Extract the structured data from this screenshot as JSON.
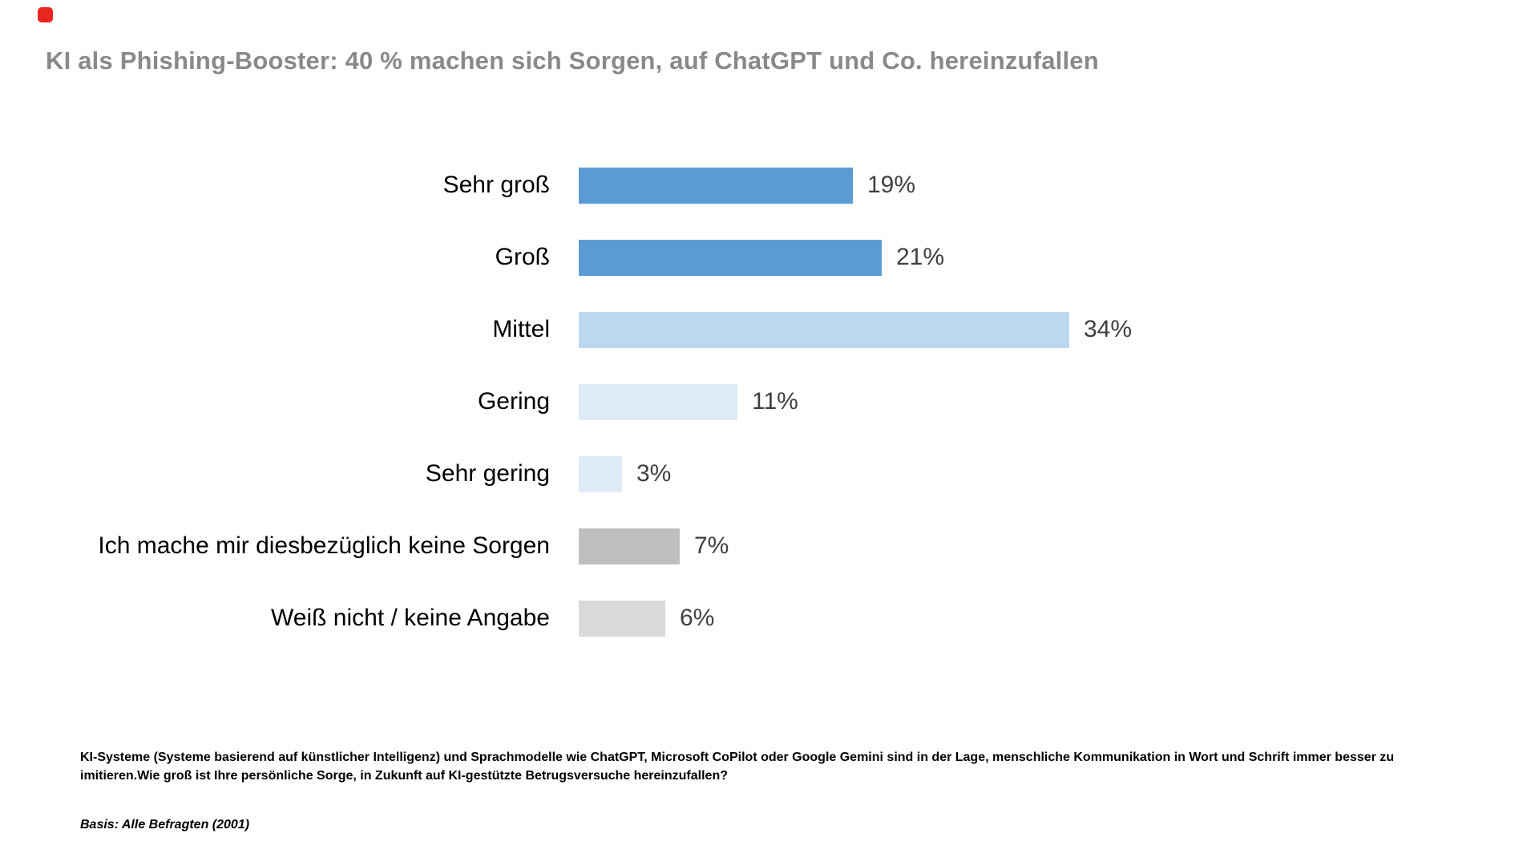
{
  "title": "KI als Phishing-Booster: 40 % machen sich Sorgen, auf ChatGPT und Co. hereinzufallen",
  "chart_data": {
    "type": "bar",
    "orientation": "horizontal",
    "unit": "%",
    "title": "KI als Phishing-Booster: 40 % machen sich Sorgen, auf ChatGPT und Co. hereinzufallen",
    "categories": [
      "Sehr groß",
      "Groß",
      "Mittel",
      "Gering",
      "Sehr gering",
      "Ich mache mir diesbezüglich keine Sorgen",
      "Weiß nicht / keine Angabe"
    ],
    "values": [
      19,
      21,
      34,
      11,
      3,
      7,
      6
    ],
    "value_labels": [
      "19%",
      "21%",
      "34%",
      "11%",
      "3%",
      "7%",
      "6%"
    ],
    "bar_colors": [
      "#5B9BD5",
      "#5B9BD5",
      "#BDD7EE",
      "#DEEBF7",
      "#DEEBF7",
      "#BFBFBF",
      "#D9D9D9"
    ],
    "xlim": [
      0,
      40
    ],
    "grid": false,
    "legend": false
  },
  "colors": {
    "title_text": "#898989",
    "category_text": "#000000",
    "value_text": "#404040",
    "background": "#FFFFFF",
    "record_dot": "#E8251F"
  },
  "footnote": "KI-Systeme (Systeme basierend auf künstlicher Intelligenz) und Sprachmodelle wie ChatGPT, Microsoft CoPilot oder Google Gemini sind in der Lage, menschliche Kommunikation in Wort und Schrift immer besser zu imitieren.Wie groß ist Ihre persönliche Sorge, in Zukunft auf KI-gestützte Betrugsversuche hereinzufallen?",
  "basis": "Basis: Alle Befragten (2001)"
}
